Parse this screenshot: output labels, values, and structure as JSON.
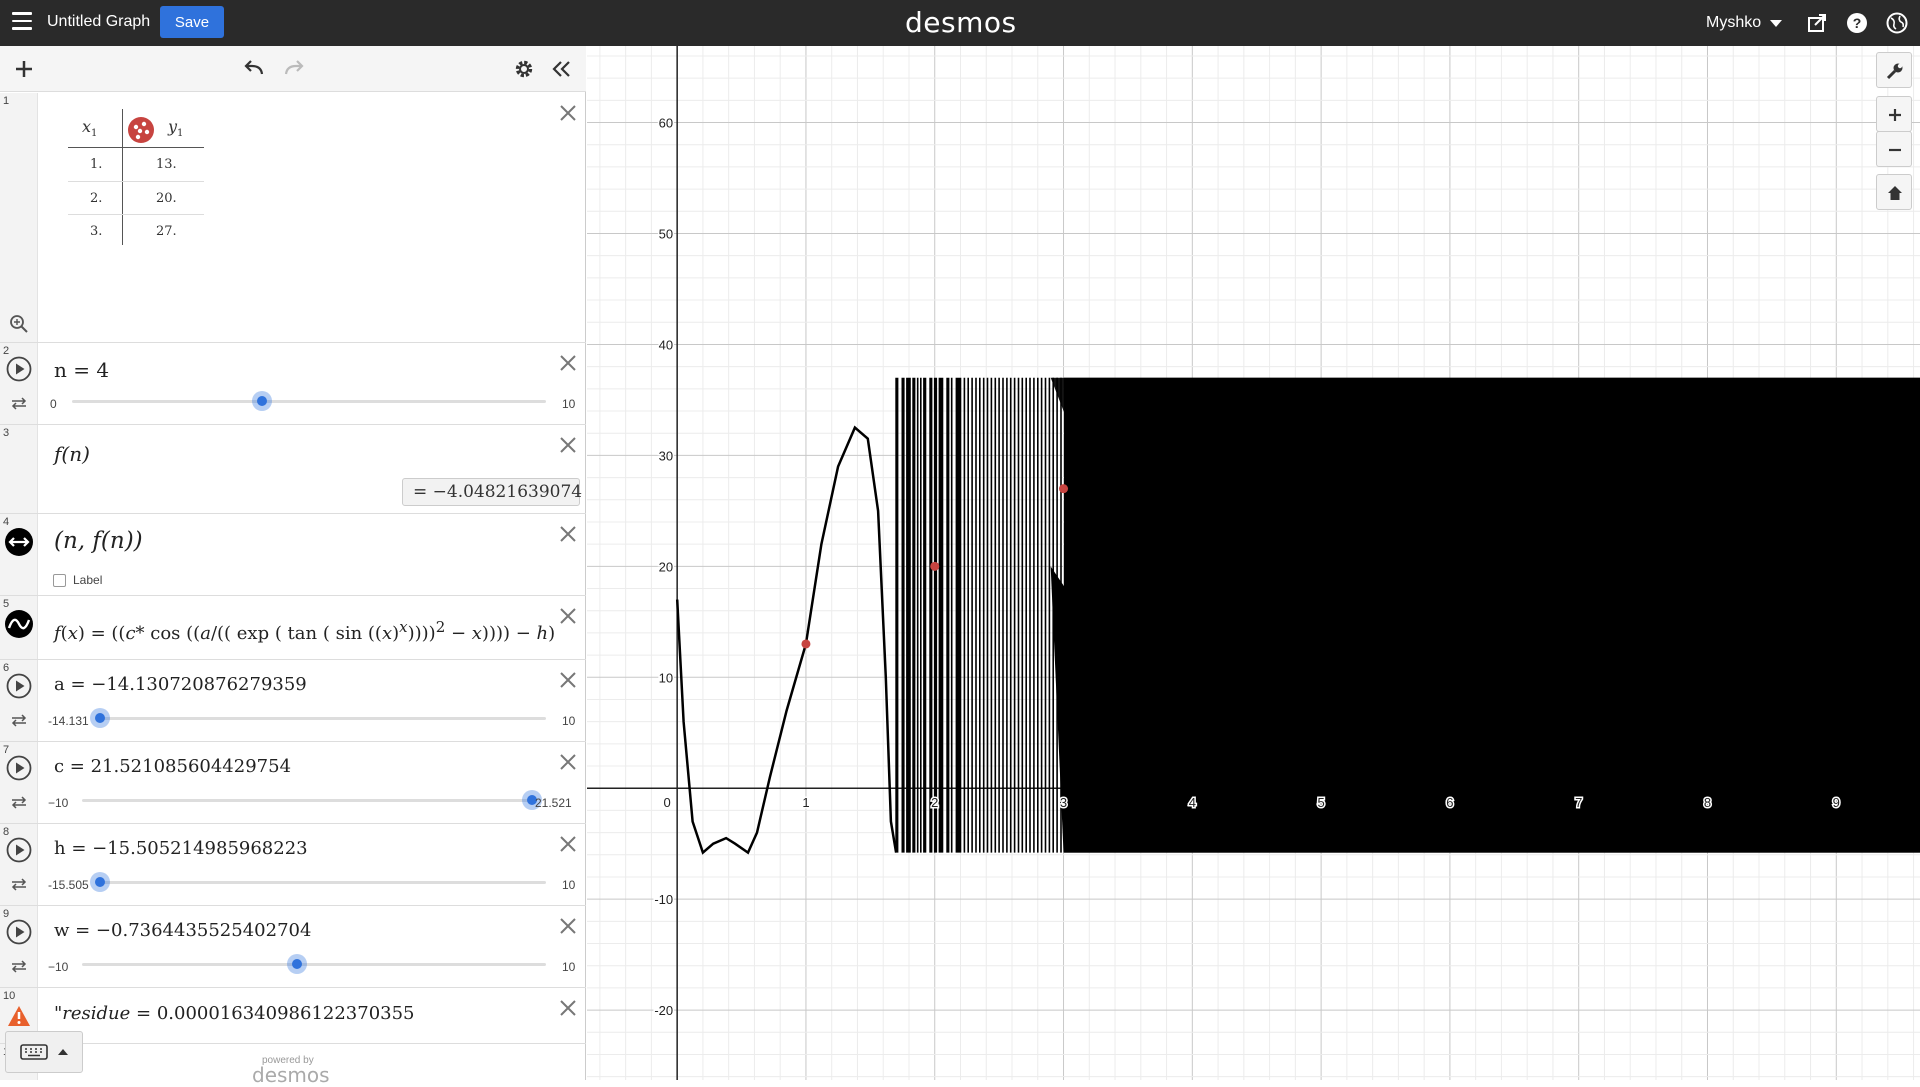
{
  "header": {
    "title": "Untitled Graph",
    "save_label": "Save",
    "brand": "desmos",
    "user": "Myshko"
  },
  "table": {
    "col_x": "x",
    "col_x_sub": "1",
    "col_y": "y",
    "col_y_sub": "1",
    "rows": [
      [
        "1.",
        "13."
      ],
      [
        "2.",
        "20."
      ],
      [
        "3.",
        "27."
      ]
    ],
    "point_color": "#c74440"
  },
  "expressions": {
    "e1": {
      "num": "1"
    },
    "e2": {
      "num": "2",
      "latex": "n = 4",
      "min": "0",
      "max": "10",
      "value": 4,
      "range": [
        0,
        10
      ]
    },
    "e3": {
      "num": "3",
      "latex": "f(n)",
      "result": "= −4.04821639074"
    },
    "e4": {
      "num": "4",
      "latex": "(n, f(n))",
      "label_text": "Label"
    },
    "e5": {
      "num": "5",
      "latex_html": "<i>f</i>(<i>x</i>) = ((<i>c</i>* cos ((<i>a</i>/(( exp ( tan ( sin ((<i>x</i>)<sup><i>x</i></sup>))))<sup>2</sup> − <i>x</i>)))) − <i>h</i>)"
    },
    "e6": {
      "num": "6",
      "latex": "a = −14.130720876279359",
      "min": "-14.131",
      "max": "10",
      "value": -14.131,
      "range": [
        -14.131,
        10
      ]
    },
    "e7": {
      "num": "7",
      "latex": "c = 21.521085604429754",
      "min": "−10",
      "max": "21.521",
      "value": 21.521,
      "range": [
        -10,
        21.521
      ]
    },
    "e8": {
      "num": "8",
      "latex": "h = −15.505214985968223",
      "min": "-15.505",
      "max": "10",
      "value": -15.505,
      "range": [
        -15.505,
        10
      ]
    },
    "e9": {
      "num": "9",
      "latex": "w = −0.7364435525402704",
      "min": "−10",
      "max": "10",
      "value": -0.736,
      "range": [
        -10,
        10
      ]
    },
    "e10": {
      "num": "10",
      "latex_html": "\"<i>residue</i> = 0.000016340986122370355"
    },
    "e11": {
      "num": "11"
    }
  },
  "footer": {
    "powered_by": "powered by",
    "brand": "desmos"
  },
  "graph": {
    "x_ticks": [
      "0",
      "1",
      "2",
      "3",
      "4",
      "5",
      "6",
      "7",
      "8",
      "9"
    ],
    "y_ticks": [
      "60",
      "50",
      "40",
      "30",
      "20",
      "10",
      "-10",
      "-20"
    ],
    "x_range": [
      -0.7,
      9.65
    ],
    "y_range": [
      -26.3,
      66.9
    ],
    "points": [
      [
        1,
        13
      ],
      [
        2,
        20
      ],
      [
        3,
        27
      ]
    ],
    "curve_color": "#000000",
    "point_color": "#c74440"
  }
}
